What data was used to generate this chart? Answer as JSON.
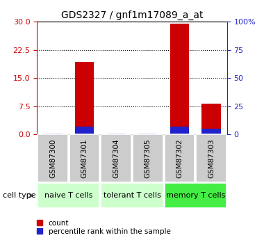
{
  "title": "GDS2327 / gnf1m17089_a_at",
  "samples": [
    "GSM87300",
    "GSM87301",
    "GSM87304",
    "GSM87305",
    "GSM87302",
    "GSM87303"
  ],
  "count_values": [
    0.05,
    19.2,
    0.05,
    0.05,
    29.5,
    8.1
  ],
  "percentile_values": [
    0.5,
    7.0,
    0.5,
    0.5,
    7.2,
    5.2
  ],
  "left_ylim": [
    0,
    30
  ],
  "right_ylim": [
    0,
    100
  ],
  "left_yticks": [
    0,
    7.5,
    15,
    22.5,
    30
  ],
  "right_yticks": [
    0,
    25,
    50,
    75,
    100
  ],
  "right_yticklabels": [
    "0",
    "25",
    "50",
    "75",
    "100%"
  ],
  "bar_color_red": "#cc0000",
  "bar_color_blue": "#2222cc",
  "groups": [
    {
      "label": "naive T cells",
      "indices": [
        0,
        1
      ],
      "color": "#ccffcc"
    },
    {
      "label": "tolerant T cells",
      "indices": [
        2,
        3
      ],
      "color": "#ccffcc"
    },
    {
      "label": "memory T cells",
      "indices": [
        4,
        5
      ],
      "color": "#44ee44"
    }
  ],
  "cell_type_label": "cell type",
  "legend_count": "count",
  "legend_percentile": "percentile rank within the sample",
  "sample_box_color": "#cccccc",
  "title_fontsize": 10,
  "tick_fontsize": 8,
  "sample_fontsize": 7.5,
  "group_fontsize": 8,
  "legend_fontsize": 7.5
}
